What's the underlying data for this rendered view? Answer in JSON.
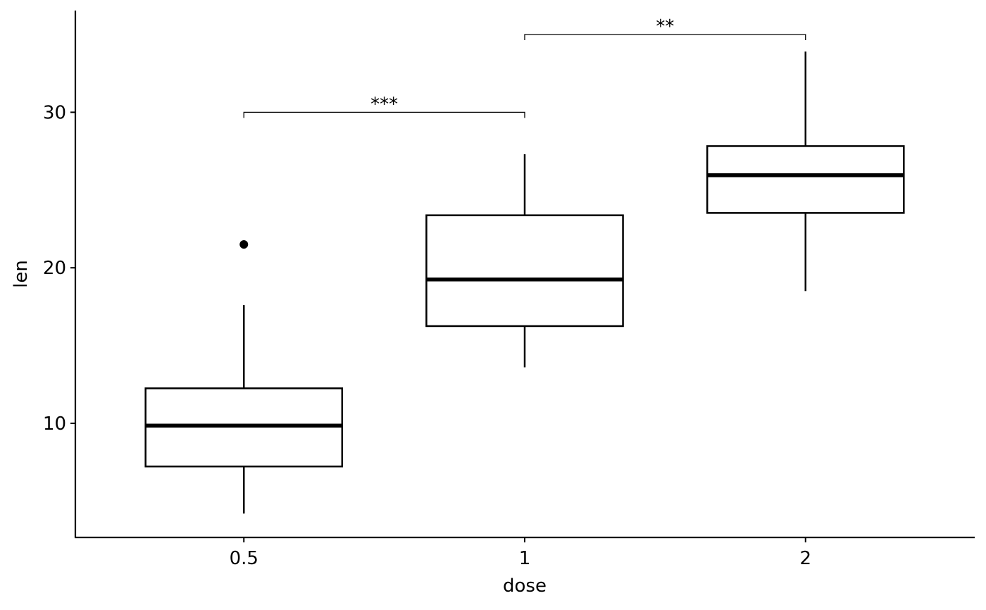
{
  "chart_data": {
    "type": "box",
    "x_label": "dose",
    "y_label": "len",
    "categories": [
      "0.5",
      "1",
      "2"
    ],
    "boxes": [
      {
        "min": 4.2,
        "q1": 7.225,
        "median": 9.85,
        "q3": 12.25,
        "max": 17.6,
        "outliers": [
          21.5
        ]
      },
      {
        "min": 13.6,
        "q1": 16.25,
        "median": 19.25,
        "q3": 23.375,
        "max": 27.3,
        "outliers": []
      },
      {
        "min": 18.5,
        "q1": 23.525,
        "median": 25.95,
        "q3": 27.825,
        "max": 33.9,
        "outliers": []
      }
    ],
    "color": "#000000",
    "ylim": [
      2.66,
      36.54
    ],
    "yticks": [
      10,
      20,
      30
    ],
    "grid": false,
    "annotations": [
      {
        "from": 0,
        "to": 1,
        "y": 30,
        "label": "***"
      },
      {
        "from": 1,
        "to": 2,
        "y": 35,
        "label": "**"
      }
    ]
  }
}
